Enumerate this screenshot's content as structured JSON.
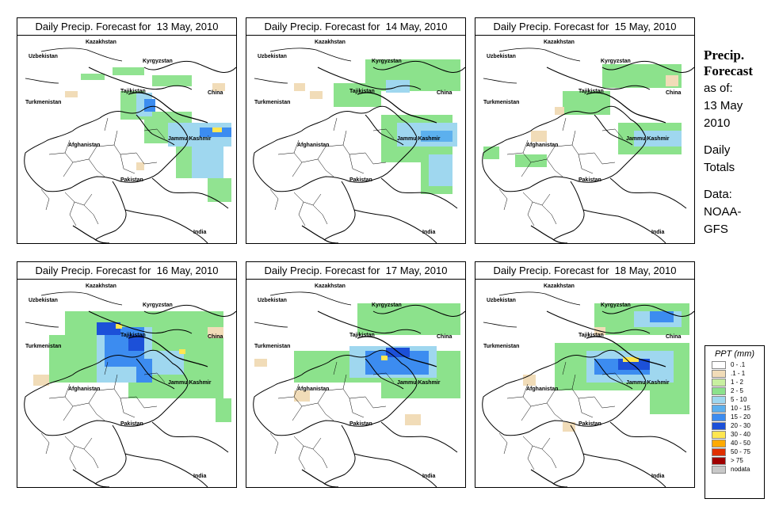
{
  "panels": [
    {
      "title": "Daily Precip. Forecast for  13 May, 2010"
    },
    {
      "title": "Daily Precip. Forecast for  14 May, 2010"
    },
    {
      "title": "Daily Precip. Forecast for  15 May, 2010"
    },
    {
      "title": "Daily Precip. Forecast for  16 May, 2010"
    },
    {
      "title": "Daily Precip. Forecast for  17 May, 2010"
    },
    {
      "title": "Daily Precip. Forecast for  18 May, 2010"
    }
  ],
  "map_labels": {
    "kazakhstan": "Kazakhstan",
    "uzbekistan": "Uzbekistan",
    "kyrgyzstan": "Kyrgyzstan",
    "tajikistan": "Tajikistan",
    "turkmenistan": "Turkmenistan",
    "china": "China",
    "jammu_kashmir": "Jammu Kashmir",
    "afghanistan": "Afghanistan",
    "pakistan": "Pakistan",
    "india": "India"
  },
  "sidebar": {
    "title_line1": "Precip.",
    "title_line2": "Forecast",
    "asof_line1": "as of:",
    "asof_line2": "13 May",
    "asof_line3": "2010",
    "totals_line1": "Daily",
    "totals_line2": "Totals",
    "data_line1": "Data:",
    "data_line2": "NOAA-",
    "data_line3": "GFS"
  },
  "legend": {
    "title": "PPT (mm)",
    "items": [
      {
        "label": "0 - .1",
        "color": "#ffffff"
      },
      {
        "label": ".1 - 1",
        "color": "#f1dcb8"
      },
      {
        "label": "1 - 2",
        "color": "#c8f0a0"
      },
      {
        "label": "2 - 5",
        "color": "#8ce28c"
      },
      {
        "label": "5 - 10",
        "color": "#9fd7ef"
      },
      {
        "label": "10 - 15",
        "color": "#5cb0ee"
      },
      {
        "label": "15 - 20",
        "color": "#3c8cf0"
      },
      {
        "label": "20 - 30",
        "color": "#1c50d8"
      },
      {
        "label": "30 - 40",
        "color": "#ffe650"
      },
      {
        "label": "40 - 50",
        "color": "#ffaa00"
      },
      {
        "label": "50 - 75",
        "color": "#e03000"
      },
      {
        "label": "> 75",
        "color": "#a00000"
      },
      {
        "label": "nodata",
        "color": "#c8c8c8"
      }
    ]
  }
}
